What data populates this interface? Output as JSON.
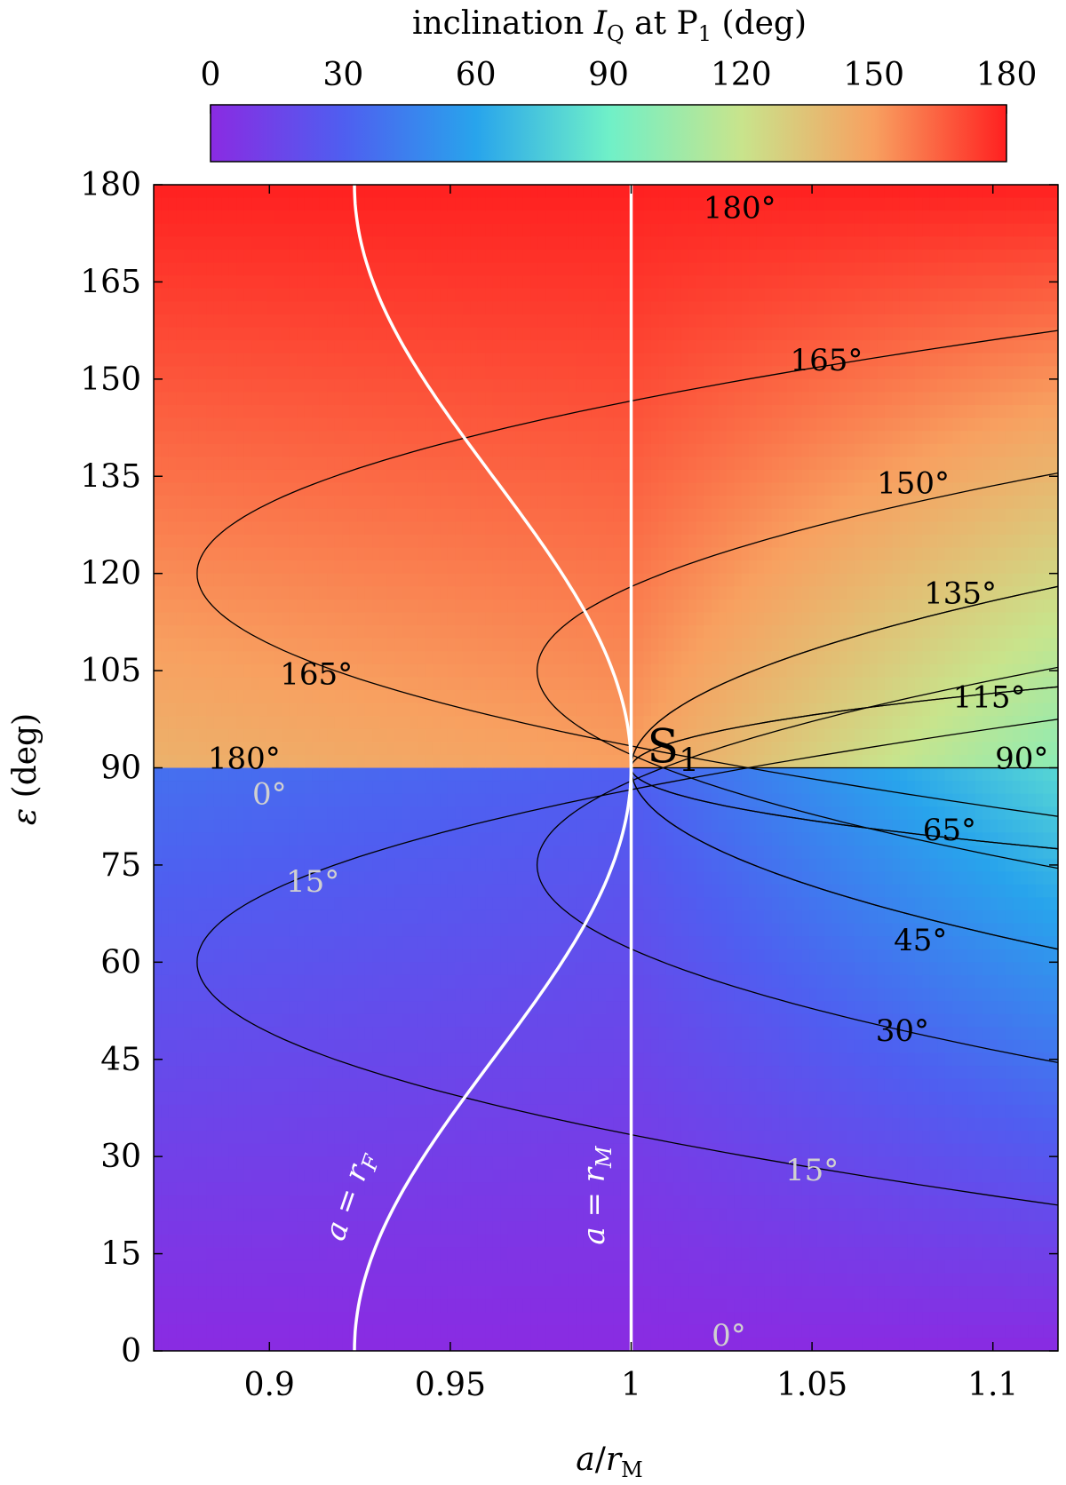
{
  "chart_data": {
    "type": "heatmap",
    "title": "inclination I_Q at P₁ (deg)",
    "title_parts": {
      "pre": "inclination ",
      "var": "I",
      "sub": "Q",
      "post": " at P",
      "p_sub": "1",
      "unit": " (deg)"
    },
    "colorbar": {
      "ticks": [
        "0",
        "30",
        "60",
        "90",
        "120",
        "150",
        "180"
      ],
      "tick_values": [
        0,
        30,
        60,
        90,
        120,
        150,
        180
      ],
      "range": [
        0,
        180
      ],
      "colors": [
        "#8a2be2",
        "#4f5ef0",
        "#28a4ec",
        "#6ff0c8",
        "#c8e48c",
        "#f8a060",
        "#ff2020"
      ]
    },
    "xlabel": {
      "var": "a",
      "slash": "/",
      "var2": "r",
      "sub": "M"
    },
    "ylabel": {
      "var": "ε",
      "unit": " (deg)"
    },
    "xlim": [
      0.868,
      1.118
    ],
    "ylim": [
      0,
      180
    ],
    "xticks": [
      "0.9",
      "0.95",
      "1",
      "1.05",
      "1.1"
    ],
    "xtick_values": [
      0.9,
      0.95,
      1.0,
      1.05,
      1.1
    ],
    "yticks": [
      "0",
      "15",
      "30",
      "45",
      "60",
      "75",
      "90",
      "105",
      "120",
      "135",
      "150",
      "165",
      "180"
    ],
    "ytick_values": [
      0,
      15,
      30,
      45,
      60,
      75,
      90,
      105,
      120,
      135,
      150,
      165,
      180
    ],
    "contours": [
      {
        "value": 15,
        "vertex": [
          0.88,
          60
        ],
        "end_y": 22.5
      },
      {
        "value": 30,
        "vertex": [
          0.974,
          75
        ],
        "end_y": 44.5
      },
      {
        "value": 45,
        "vertex": [
          1.0,
          90
        ],
        "end_y": 62.0
      },
      {
        "value": 65,
        "vertex": [
          1.0,
          90
        ],
        "end_y": 77.5
      },
      {
        "value": 115,
        "vertex": [
          1.0,
          90
        ],
        "end_y": 102.5
      },
      {
        "value": 135,
        "vertex": [
          1.0,
          90
        ],
        "end_y": 118.0
      },
      {
        "value": 150,
        "vertex": [
          0.974,
          105
        ],
        "end_y": 135.5
      },
      {
        "value": 165,
        "vertex": [
          0.88,
          120
        ],
        "end_y": 157.5
      }
    ],
    "curves": [
      {
        "name": "a = r_F",
        "label": {
          "pre": "a = r",
          "sub": "F"
        }
      },
      {
        "name": "a = r_M",
        "label": {
          "pre": "a = r",
          "sub": "M"
        }
      }
    ],
    "point_label": {
      "text": "S",
      "sub": "1",
      "x": 1.0,
      "y": 90
    },
    "annotations": [
      {
        "text": "180°",
        "x": 1.03,
        "y": 176.5,
        "color": "#000000"
      },
      {
        "text": "165°",
        "x": 1.054,
        "y": 153.0,
        "color": "#000000"
      },
      {
        "text": "150°",
        "x": 1.078,
        "y": 134.0,
        "color": "#000000"
      },
      {
        "text": "135°",
        "x": 1.091,
        "y": 117.0,
        "color": "#000000"
      },
      {
        "text": "115°",
        "x": 1.099,
        "y": 101.0,
        "color": "#000000"
      },
      {
        "text": "90°",
        "x": 1.108,
        "y": 91.5,
        "color": "#000000"
      },
      {
        "text": "65°",
        "x": 1.088,
        "y": 80.5,
        "color": "#000000"
      },
      {
        "text": "45°",
        "x": 1.08,
        "y": 63.5,
        "color": "#000000"
      },
      {
        "text": "30°",
        "x": 1.075,
        "y": 49.5,
        "color": "#000000"
      },
      {
        "text": "15°",
        "x": 1.05,
        "y": 28.0,
        "color": "#d0d0d0"
      },
      {
        "text": "0°",
        "x": 1.027,
        "y": 2.5,
        "color": "#d0d0d0"
      },
      {
        "text": "165°",
        "x": 0.913,
        "y": 104.5,
        "color": "#000000"
      },
      {
        "text": "180°",
        "x": 0.893,
        "y": 91.5,
        "color": "#000000"
      },
      {
        "text": "0°",
        "x": 0.9,
        "y": 86.0,
        "color": "#d0d0d0"
      },
      {
        "text": "15°",
        "x": 0.912,
        "y": 72.5,
        "color": "#d0d0d0"
      }
    ]
  }
}
